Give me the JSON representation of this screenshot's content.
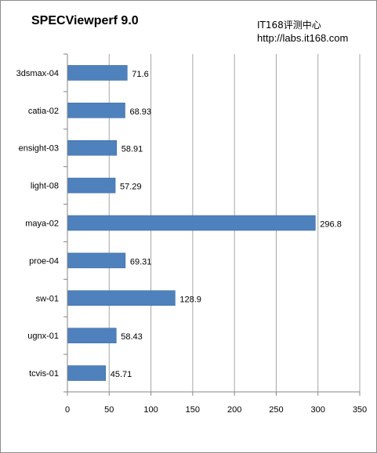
{
  "watermark": {
    "line1": "IT168评测中心",
    "line2": "http://labs.it168.com"
  },
  "chart_data": {
    "type": "bar",
    "orientation": "horizontal",
    "title": "SPECViewperf 9.0",
    "categories": [
      "3dsmax-04",
      "catia-02",
      "ensight-03",
      "light-08",
      "maya-02",
      "proe-04",
      "sw-01",
      "ugnx-01",
      "tcvis-01"
    ],
    "values": [
      71.6,
      68.93,
      58.91,
      57.29,
      296.8,
      69.31,
      128.9,
      58.43,
      45.71
    ],
    "value_labels": [
      "71.6",
      "68.93",
      "58.91",
      "57.29",
      "296.8",
      "69.31",
      "128.9",
      "58.43",
      "45.71"
    ],
    "xlim": [
      0,
      350
    ],
    "xticks": [
      0,
      50,
      100,
      150,
      200,
      250,
      300,
      350
    ],
    "xlabel": "",
    "ylabel": "",
    "grid": "vertical",
    "legend": "none",
    "bar_color": "#4f81bd"
  }
}
